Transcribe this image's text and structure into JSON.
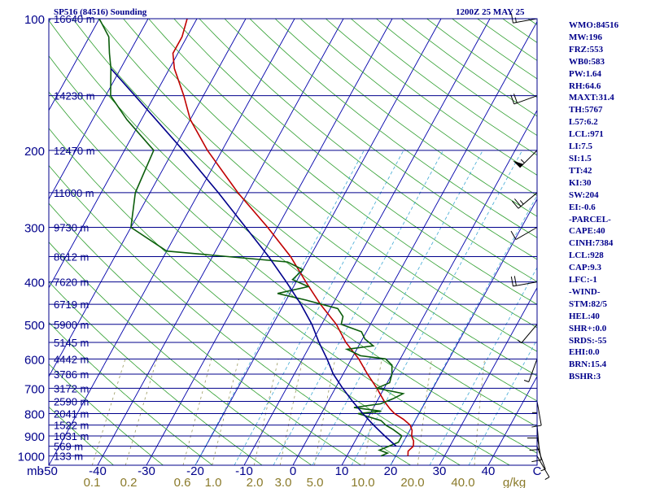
{
  "header": {
    "station": "SP516 (84516) Sounding",
    "time": "1200Z 25 MAY 25"
  },
  "indices": [
    "WMO:84516",
    "MW:196",
    "FRZ:553",
    "WB0:583",
    "PW:1.64",
    "RH:64.6",
    "MAXT:31.4",
    "TH:5767",
    "L57:6.2",
    "LCL:971",
    "LI:7.5",
    "SI:1.5",
    "TT:42",
    "KI:30",
    "SW:204",
    "EI:-0.6",
    "-PARCEL-",
    "CAPE:40",
    "CINH:7384",
    "LCL:928",
    "CAP:9.3",
    "LFC:-1",
    "-WIND-",
    "STM:82/5",
    "HEL:40",
    "SHR+:0.0",
    "SRDS:-55",
    "EHI:0.0",
    "BRN:15.4",
    "BSHR:3"
  ],
  "chart_data": {
    "type": "line",
    "title": "SP516 (84516) Sounding",
    "subtitle": "1200Z 25 MAY 25",
    "xlabel": "",
    "ylabel": "mb",
    "y_unit_label": "mb",
    "x_ticks": [
      "-50",
      "-40",
      "-30",
      "-20",
      "-10",
      "0",
      "10",
      "20",
      "30",
      "40",
      "C"
    ],
    "x_tick_values": [
      -50,
      -40,
      -30,
      -20,
      -10,
      0,
      10,
      20,
      30,
      40,
      50
    ],
    "mixing_ratio_labels": [
      "0.1",
      "0.2",
      "0.6",
      "1.0",
      "2.0",
      "3.0",
      "5.0",
      "10.0",
      "20.0",
      "40.0"
    ],
    "mixing_ratio_unit": "g/kg",
    "pressure_labels": [
      {
        "p": 100,
        "label": "100"
      },
      {
        "p": 200,
        "label": "200"
      },
      {
        "p": 300,
        "label": "300"
      },
      {
        "p": 400,
        "label": "400"
      },
      {
        "p": 500,
        "label": "500"
      },
      {
        "p": 600,
        "label": "600"
      },
      {
        "p": 700,
        "label": "700"
      },
      {
        "p": 800,
        "label": "800"
      },
      {
        "p": 900,
        "label": "900"
      },
      {
        "p": 1000,
        "label": "1000"
      }
    ],
    "height_labels": [
      {
        "p": 100,
        "label": "16640 m"
      },
      {
        "p": 150,
        "label": "14230 m"
      },
      {
        "p": 200,
        "label": "12470 m"
      },
      {
        "p": 250,
        "label": "11000 m"
      },
      {
        "p": 300,
        "label": "9730 m"
      },
      {
        "p": 350,
        "label": "8612 m"
      },
      {
        "p": 400,
        "label": "7620 m"
      },
      {
        "p": 450,
        "label": "6719 m"
      },
      {
        "p": 500,
        "label": "5900 m"
      },
      {
        "p": 550,
        "label": "5145 m"
      },
      {
        "p": 600,
        "label": "4442 m"
      },
      {
        "p": 650,
        "label": "3786 m"
      },
      {
        "p": 700,
        "label": "3172 m"
      },
      {
        "p": 750,
        "label": "2590 m"
      },
      {
        "p": 800,
        "label": "2041 m"
      },
      {
        "p": 850,
        "label": "1522 m"
      },
      {
        "p": 900,
        "label": "1031 m"
      },
      {
        "p": 950,
        "label": "569 m"
      },
      {
        "p": 1000,
        "label": "133 m"
      }
    ],
    "series": [
      {
        "name": "Temperature",
        "color": "#c00000",
        "points": [
          [
            1000,
            22.5
          ],
          [
            975,
            22.0
          ],
          [
            950,
            22.5
          ],
          [
            925,
            22.0
          ],
          [
            900,
            21.0
          ],
          [
            875,
            20.5
          ],
          [
            850,
            19.5
          ],
          [
            825,
            17.5
          ],
          [
            800,
            15.0
          ],
          [
            780,
            13.5
          ],
          [
            750,
            11.5
          ],
          [
            700,
            8.5
          ],
          [
            650,
            5.0
          ],
          [
            600,
            1.5
          ],
          [
            550,
            -3.0
          ],
          [
            500,
            -7.0
          ],
          [
            450,
            -12.5
          ],
          [
            400,
            -18.0
          ],
          [
            350,
            -24.0
          ],
          [
            300,
            -32.0
          ],
          [
            250,
            -42.0
          ],
          [
            200,
            -53.0
          ],
          [
            170,
            -60.0
          ],
          [
            150,
            -64.0
          ],
          [
            130,
            -69.0
          ],
          [
            120,
            -71.0
          ],
          [
            110,
            -71.0
          ],
          [
            100,
            -72.0
          ]
        ]
      },
      {
        "name": "Dewpoint",
        "color": "#0b5d0b",
        "points": [
          [
            1000,
            17.0
          ],
          [
            985,
            18.0
          ],
          [
            970,
            16.0
          ],
          [
            950,
            17.5
          ],
          [
            930,
            19.0
          ],
          [
            900,
            19.0
          ],
          [
            870,
            16.5
          ],
          [
            850,
            14.5
          ],
          [
            830,
            13.0
          ],
          [
            800,
            7.5
          ],
          [
            790,
            12.0
          ],
          [
            775,
            6.0
          ],
          [
            760,
            11.0
          ],
          [
            740,
            13.0
          ],
          [
            720,
            14.5
          ],
          [
            700,
            8.5
          ],
          [
            680,
            10.5
          ],
          [
            650,
            10.0
          ],
          [
            620,
            9.0
          ],
          [
            600,
            7.0
          ],
          [
            590,
            1.5
          ],
          [
            570,
            -2.0
          ],
          [
            560,
            3.0
          ],
          [
            540,
            0.5
          ],
          [
            520,
            -1.0
          ],
          [
            500,
            -6.0
          ],
          [
            480,
            -6.5
          ],
          [
            460,
            -8.5
          ],
          [
            440,
            -16.0
          ],
          [
            425,
            -22.5
          ],
          [
            410,
            -17.0
          ],
          [
            395,
            -21.0
          ],
          [
            375,
            -20.0
          ],
          [
            360,
            -24.0
          ],
          [
            340,
            -50.0
          ],
          [
            300,
            -60.0
          ],
          [
            250,
            -63.0
          ],
          [
            200,
            -64.0
          ],
          [
            170,
            -73.0
          ],
          [
            150,
            -79.0
          ],
          [
            130,
            -82.0
          ],
          [
            120,
            -84.0
          ],
          [
            110,
            -86.0
          ],
          [
            100,
            -90.0
          ]
        ]
      },
      {
        "name": "Parcel",
        "color": "#00008b",
        "points": [
          [
            950,
            19.0
          ],
          [
            900,
            15.5
          ],
          [
            850,
            12.0
          ],
          [
            800,
            8.5
          ],
          [
            750,
            5.0
          ],
          [
            700,
            1.5
          ],
          [
            650,
            -2.0
          ],
          [
            600,
            -5.0
          ],
          [
            550,
            -8.5
          ],
          [
            500,
            -12.0
          ],
          [
            450,
            -16.5
          ],
          [
            400,
            -22.0
          ],
          [
            350,
            -28.5
          ],
          [
            300,
            -36.5
          ],
          [
            250,
            -46.0
          ],
          [
            200,
            -58.0
          ],
          [
            150,
            -74.0
          ],
          [
            130,
            -82.0
          ]
        ]
      }
    ],
    "wind_barbs": [
      {
        "p": 1000,
        "speed": 5,
        "dir": 150
      },
      {
        "p": 950,
        "speed": 5,
        "dir": 160
      },
      {
        "p": 900,
        "speed": 10,
        "dir": 170
      },
      {
        "p": 850,
        "speed": 10,
        "dir": 175
      },
      {
        "p": 800,
        "speed": 10,
        "dir": 180
      },
      {
        "p": 750,
        "speed": 10,
        "dir": 170
      },
      {
        "p": 700,
        "speed": 5,
        "dir": 180
      },
      {
        "p": 600,
        "speed": 5,
        "dir": 200
      },
      {
        "p": 500,
        "speed": 5,
        "dir": 220
      },
      {
        "p": 400,
        "speed": 20,
        "dir": 260
      },
      {
        "p": 300,
        "speed": 10,
        "dir": 240
      },
      {
        "p": 250,
        "speed": 25,
        "dir": 230
      },
      {
        "p": 200,
        "speed": 55,
        "dir": 225
      },
      {
        "p": 150,
        "speed": 20,
        "dir": 250
      },
      {
        "p": 100,
        "speed": 15,
        "dir": 260
      }
    ],
    "ylim": [
      1050,
      100
    ],
    "xlim": [
      -50,
      50
    ],
    "grid": true
  }
}
